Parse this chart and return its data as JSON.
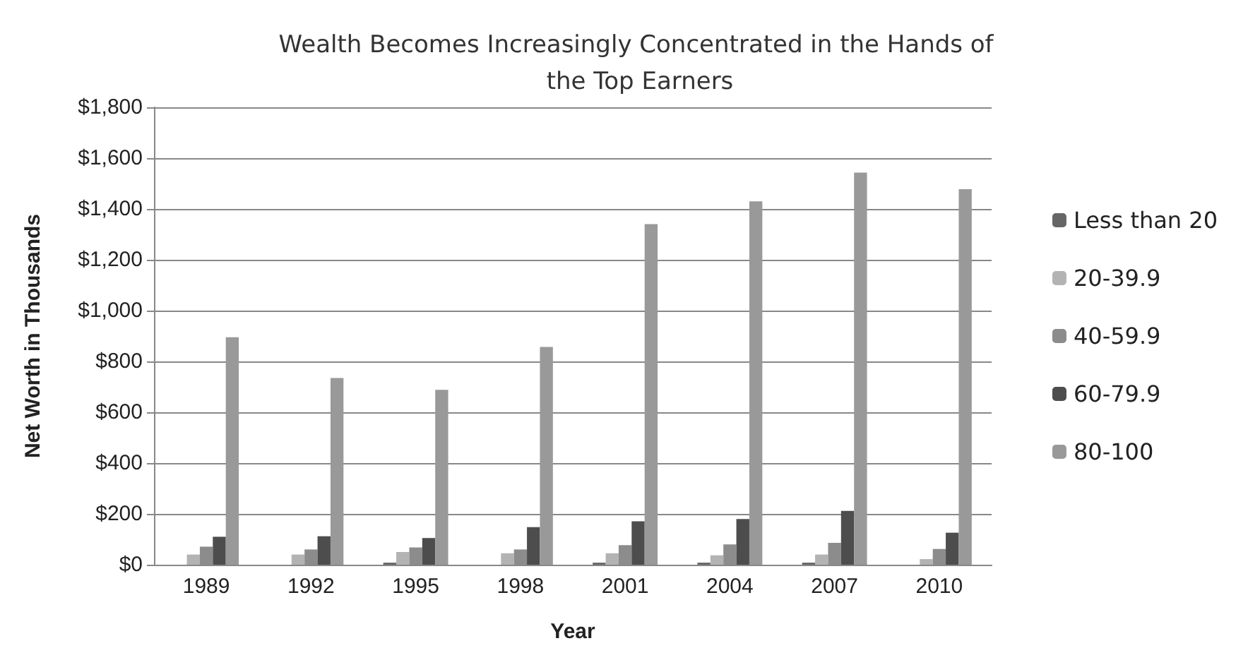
{
  "chart_data": {
    "type": "bar",
    "title": "Wealth Becomes Increasingly Concentrated in the Hands of the Top Earners",
    "xlabel": "Year",
    "ylabel": "Net Worth in Thousands",
    "categories": [
      "1989",
      "1992",
      "1995",
      "1998",
      "2001",
      "2004",
      "2007",
      "2010"
    ],
    "series": [
      {
        "name": "Less than 20",
        "color": "#666666",
        "values": [
          null,
          null,
          8,
          null,
          8,
          8,
          8,
          null
        ]
      },
      {
        "name": "20-39.9",
        "color": "#b3b3b3",
        "values": [
          40,
          40,
          50,
          45,
          45,
          37,
          40,
          22
        ]
      },
      {
        "name": "40-59.9",
        "color": "#8c8c8c",
        "values": [
          71,
          60,
          68,
          60,
          77,
          80,
          86,
          62
        ]
      },
      {
        "name": "60-79.9",
        "color": "#4d4d4d",
        "values": [
          110,
          112,
          105,
          148,
          171,
          180,
          212,
          126
        ]
      },
      {
        "name": "80-100",
        "color": "#999999",
        "values": [
          895,
          735,
          688,
          857,
          1340,
          1430,
          1543,
          1478
        ]
      }
    ],
    "ylim": [
      0,
      1800
    ],
    "yticks": [
      {
        "value": 0,
        "label": "$0"
      },
      {
        "value": 200,
        "label": "$200"
      },
      {
        "value": 400,
        "label": "$400"
      },
      {
        "value": 600,
        "label": "$600"
      },
      {
        "value": 800,
        "label": "$800"
      },
      {
        "value": 1000,
        "label": "$1,000"
      },
      {
        "value": 1200,
        "label": "$1,200"
      },
      {
        "value": 1400,
        "label": "$1,400"
      },
      {
        "value": 1600,
        "label": "$1,600"
      },
      {
        "value": 1800,
        "label": "$1,800"
      }
    ],
    "grid": "y",
    "legend": "right"
  }
}
